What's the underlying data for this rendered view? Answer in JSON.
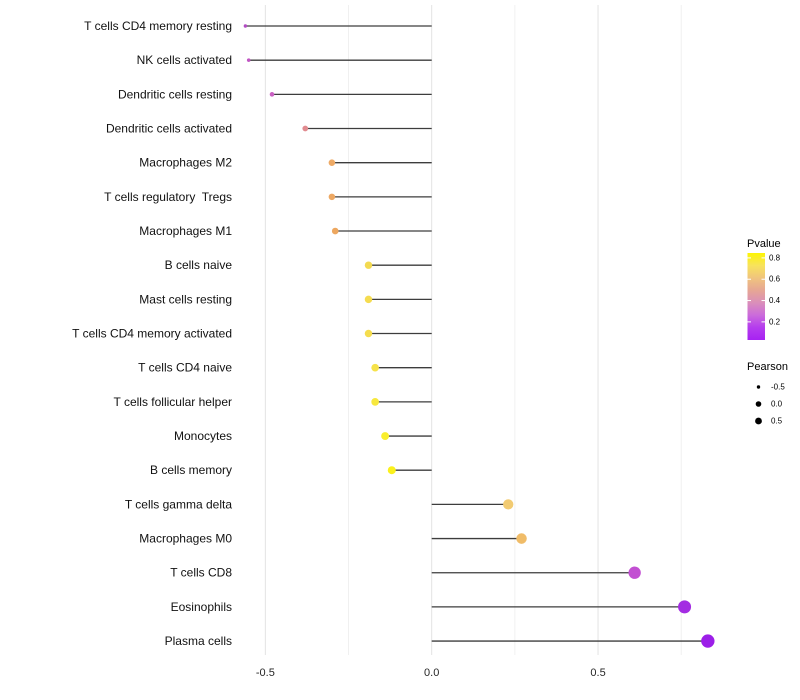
{
  "chart_data": {
    "type": "lollipop",
    "title": "",
    "xlabel": "",
    "ylabel": "",
    "orientation": "horizontal",
    "xlim": [
      -0.62,
      0.88
    ],
    "grid": "on",
    "x_major_ticks": [
      {
        "value": -0.5,
        "label": "-0.5"
      },
      {
        "value": 0.0,
        "label": "0.0"
      },
      {
        "value": 0.5,
        "label": "0.5"
      }
    ],
    "x_minor_ticks": [
      -0.25,
      0.25,
      0.75
    ],
    "rows": [
      {
        "label": "T cells CD4 memory resting",
        "pearson": -0.56,
        "dot_color": "#b24cc3"
      },
      {
        "label": "NK cells activated",
        "pearson": -0.55,
        "dot_color": "#c055c3"
      },
      {
        "label": "Dendritic cells resting",
        "pearson": -0.48,
        "dot_color": "#ca60c3"
      },
      {
        "label": "Dendritic cells activated",
        "pearson": -0.38,
        "dot_color": "#e18b90"
      },
      {
        "label": "Macrophages M2",
        "pearson": -0.3,
        "dot_color": "#eeaa66"
      },
      {
        "label": "T cells regulatory  Tregs",
        "pearson": -0.3,
        "dot_color": "#eda863"
      },
      {
        "label": "Macrophages M1",
        "pearson": -0.29,
        "dot_color": "#eda75f"
      },
      {
        "label": "B cells naive",
        "pearson": -0.19,
        "dot_color": "#f3da51"
      },
      {
        "label": "Mast cells resting",
        "pearson": -0.19,
        "dot_color": "#f5dc50"
      },
      {
        "label": "T cells CD4 memory activated",
        "pearson": -0.19,
        "dot_color": "#f5dd4e"
      },
      {
        "label": "T cells CD4 naive",
        "pearson": -0.17,
        "dot_color": "#f6e24a"
      },
      {
        "label": "T cells follicular helper",
        "pearson": -0.17,
        "dot_color": "#f7e83e"
      },
      {
        "label": "Monocytes",
        "pearson": -0.14,
        "dot_color": "#f9ee2d"
      },
      {
        "label": "B cells memory",
        "pearson": -0.12,
        "dot_color": "#fbf11c"
      },
      {
        "label": "T cells gamma delta",
        "pearson": 0.23,
        "dot_color": "#f2cb72"
      },
      {
        "label": "Macrophages M0",
        "pearson": 0.27,
        "dot_color": "#f0bc68"
      },
      {
        "label": "T cells CD8",
        "pearson": 0.61,
        "dot_color": "#c24fd2"
      },
      {
        "label": "Eosinophils",
        "pearson": 0.76,
        "dot_color": "#a32ce2"
      },
      {
        "label": "Plasma cells",
        "pearson": 0.83,
        "dot_color": "#9c1fe8"
      }
    ],
    "legend_pvalue": {
      "title": "Pvalue",
      "ticks": [
        {
          "value": 0.8,
          "label": "0.8"
        },
        {
          "value": 0.6,
          "label": "0.6"
        },
        {
          "value": 0.4,
          "label": "0.4"
        },
        {
          "value": 0.2,
          "label": "0.2"
        }
      ],
      "bar_value_top": 0.846,
      "bar_value_bottom": 0.03,
      "gradient_top_to_bottom": [
        "#fcf503",
        "#f8e35c",
        "#f0c47e",
        "#e6a694",
        "#da8fba",
        "#cb6bdb",
        "#b43cee",
        "#a722f2"
      ]
    },
    "legend_pearson": {
      "title": "Pearson",
      "items": [
        {
          "label": "-0.5",
          "radius": 1.7
        },
        {
          "label": "0.0",
          "radius": 2.8
        },
        {
          "label": "0.5",
          "radius": 3.4
        }
      ],
      "key_color": "#000000"
    },
    "style": {
      "stem_color": "#3d3d3d",
      "major_grid_color": "#e3e3e3",
      "minor_grid_color": "#f0f0f0",
      "background": "#ffffff"
    }
  }
}
